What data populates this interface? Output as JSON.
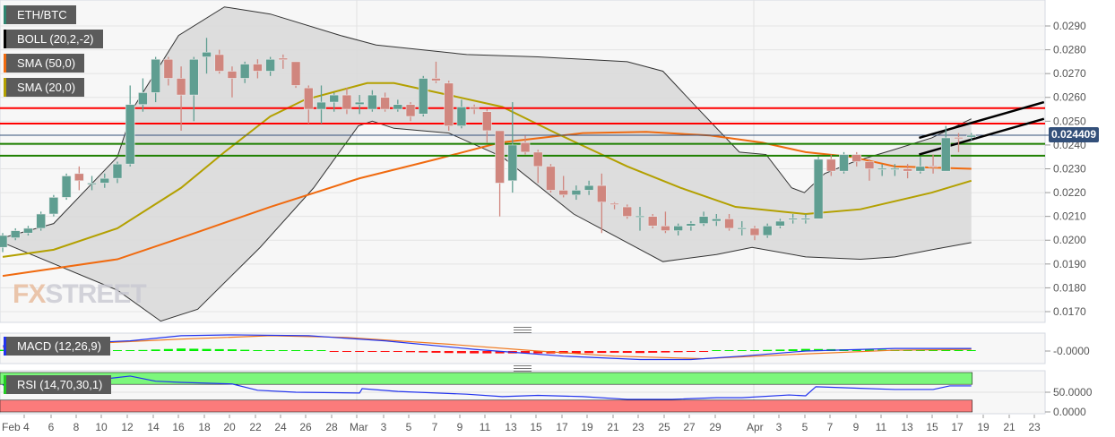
{
  "legend": {
    "pair": "ETH/BTC",
    "boll": "BOLL (20,2,-2)",
    "sma50": "SMA (50,0)",
    "sma20": "SMA (20,0)",
    "macd": "MACD (12,26,9)",
    "rsi": "RSI (14,70,30,1)"
  },
  "watermark": {
    "fx": "FX",
    "street": "STREET"
  },
  "current_price": "0.024409",
  "colors": {
    "bull": "#5f9e91",
    "bull_strong": "#2e8570",
    "bear": "#d0867e",
    "bear_strong": "#d65a4a",
    "sma50": "#f06a0f",
    "sma20": "#b3a000",
    "boll": "#333333",
    "resistance": "#ff0000",
    "support": "#1e8000",
    "price_line": "#33507a",
    "macd": "#2233ee",
    "signal": "#f07a20"
  },
  "chart_data": [
    {
      "type": "candlestick",
      "ylim": [
        0.0165,
        0.03
      ],
      "y_ticks": [
        "0.0290",
        "0.0280",
        "0.0270",
        "0.0260",
        "0.0250",
        "0.0240",
        "0.0230",
        "0.0220",
        "0.0210",
        "0.0200",
        "0.0190",
        "0.0180",
        "0.0170"
      ],
      "x_ticks": [
        "Feb 4",
        "6",
        "8",
        "10",
        "12",
        "14",
        "16",
        "18",
        "20",
        "22",
        "24",
        "26",
        "28",
        "Mar",
        "3",
        "5",
        "7",
        "9",
        "11",
        "13",
        "15",
        "17",
        "19",
        "21",
        "23",
        "25",
        "27",
        "29",
        "Apr",
        "3",
        "5",
        "7",
        "9",
        "11",
        "13",
        "15",
        "17",
        "19",
        "21",
        "23"
      ],
      "candles": [
        [
          0.0197,
          0.0203,
          0.0195,
          0.0202
        ],
        [
          0.0201,
          0.0205,
          0.02,
          0.0204
        ],
        [
          0.0203,
          0.0206,
          0.0202,
          0.0205
        ],
        [
          0.0205,
          0.0212,
          0.0204,
          0.0211
        ],
        [
          0.0211,
          0.0219,
          0.021,
          0.0218
        ],
        [
          0.0218,
          0.0228,
          0.0217,
          0.0227
        ],
        [
          0.0228,
          0.0231,
          0.0221,
          0.0225
        ],
        [
          0.0224,
          0.0227,
          0.0221,
          0.0224
        ],
        [
          0.0224,
          0.0228,
          0.0222,
          0.0226
        ],
        [
          0.0226,
          0.0233,
          0.0224,
          0.0232
        ],
        [
          0.0232,
          0.0265,
          0.0231,
          0.0257
        ],
        [
          0.0257,
          0.0268,
          0.0254,
          0.0262
        ],
        [
          0.0262,
          0.0277,
          0.0258,
          0.0276
        ],
        [
          0.0276,
          0.0277,
          0.0265,
          0.0268
        ],
        [
          0.0268,
          0.0273,
          0.0246,
          0.0261
        ],
        [
          0.0261,
          0.0277,
          0.025,
          0.0276
        ],
        [
          0.0277,
          0.0285,
          0.027,
          0.0279
        ],
        [
          0.0278,
          0.028,
          0.027,
          0.0271
        ],
        [
          0.0271,
          0.0273,
          0.026,
          0.0268
        ],
        [
          0.0268,
          0.0275,
          0.0266,
          0.0274
        ],
        [
          0.0274,
          0.0276,
          0.0268,
          0.0271
        ],
        [
          0.0271,
          0.0277,
          0.0269,
          0.0276
        ],
        [
          0.02765,
          0.0278,
          0.0272,
          0.02758
        ],
        [
          0.0275,
          0.0275,
          0.0264,
          0.0265
        ],
        [
          0.0264,
          0.0265,
          0.0249,
          0.0255
        ],
        [
          0.0255,
          0.0265,
          0.0249,
          0.0258
        ],
        [
          0.0258,
          0.0262,
          0.0254,
          0.0261
        ],
        [
          0.0261,
          0.0264,
          0.0253,
          0.0255
        ],
        [
          0.0257,
          0.0261,
          0.0253,
          0.0258
        ],
        [
          0.0255,
          0.0263,
          0.0254,
          0.0261
        ],
        [
          0.026,
          0.0262,
          0.0254,
          0.0255
        ],
        [
          0.0255,
          0.0259,
          0.0254,
          0.0257
        ],
        [
          0.0257,
          0.0258,
          0.025,
          0.0252
        ],
        [
          0.0253,
          0.0269,
          0.0252,
          0.0268
        ],
        [
          0.0268,
          0.0275,
          0.0266,
          0.0267
        ],
        [
          0.0266,
          0.0267,
          0.0246,
          0.0248
        ],
        [
          0.0248,
          0.0259,
          0.0247,
          0.0256
        ],
        [
          0.0256,
          0.0257,
          0.0253,
          0.0255
        ],
        [
          0.0254,
          0.0255,
          0.0241,
          0.0246
        ],
        [
          0.0246,
          0.0246,
          0.021,
          0.0224
        ],
        [
          0.0225,
          0.0258,
          0.022,
          0.024
        ],
        [
          0.0241,
          0.0244,
          0.0236,
          0.0237
        ],
        [
          0.0237,
          0.0238,
          0.0224,
          0.0231
        ],
        [
          0.0231,
          0.0232,
          0.022,
          0.0221
        ],
        [
          0.0221,
          0.0227,
          0.0218,
          0.0219
        ],
        [
          0.0219,
          0.0223,
          0.0217,
          0.0221
        ],
        [
          0.0221,
          0.0225,
          0.0219,
          0.0223
        ],
        [
          0.0223,
          0.0228,
          0.0203,
          0.0216
        ],
        [
          0.02155,
          0.0216,
          0.0213,
          0.0215
        ],
        [
          0.0214,
          0.0215,
          0.0209,
          0.021
        ],
        [
          0.02098,
          0.0214,
          0.0204,
          0.02102
        ],
        [
          0.021,
          0.0211,
          0.0205,
          0.0206
        ],
        [
          0.0206,
          0.0212,
          0.0203,
          0.0204
        ],
        [
          0.0204,
          0.0207,
          0.0202,
          0.0206
        ],
        [
          0.0206,
          0.0208,
          0.0204,
          0.0207
        ],
        [
          0.0207,
          0.0212,
          0.0206,
          0.021
        ],
        [
          0.0208,
          0.0211,
          0.0206,
          0.0209
        ],
        [
          0.0209,
          0.0211,
          0.0204,
          0.0205
        ],
        [
          0.02048,
          0.0208,
          0.0202,
          0.02052
        ],
        [
          0.0205,
          0.0206,
          0.02,
          0.0202
        ],
        [
          0.0202,
          0.0207,
          0.0201,
          0.0206
        ],
        [
          0.0206,
          0.0209,
          0.0205,
          0.0208
        ],
        [
          0.02088,
          0.0211,
          0.0207,
          0.02092
        ],
        [
          0.02088,
          0.0211,
          0.0207,
          0.02092
        ],
        [
          0.0209,
          0.0235,
          0.0209,
          0.0234
        ],
        [
          0.0234,
          0.0236,
          0.0227,
          0.0229
        ],
        [
          0.0229,
          0.0237,
          0.0228,
          0.0236
        ],
        [
          0.0236,
          0.0237,
          0.0231,
          0.0233
        ],
        [
          0.0233,
          0.0234,
          0.0225,
          0.023
        ],
        [
          0.02298,
          0.0232,
          0.0227,
          0.02302
        ],
        [
          0.02298,
          0.0232,
          0.0227,
          0.02302
        ],
        [
          0.023,
          0.0232,
          0.0226,
          0.0229
        ],
        [
          0.0229,
          0.0235,
          0.0228,
          0.0231
        ],
        [
          0.02312,
          0.0236,
          0.0228,
          0.02308
        ],
        [
          0.0229,
          0.0248,
          0.0229,
          0.0243
        ],
        [
          0.02432,
          0.0245,
          0.0237,
          0.02428
        ],
        [
          0.02433,
          0.0245,
          0.0242,
          0.02441
        ]
      ],
      "bollinger_upper": [
        [
          0,
          0.0201
        ],
        [
          4,
          0.0207
        ],
        [
          9,
          0.0235
        ],
        [
          10.3,
          0.0256
        ],
        [
          13.8,
          0.0286
        ],
        [
          17.4,
          0.0298
        ],
        [
          21,
          0.0295
        ],
        [
          26.5,
          0.0286
        ],
        [
          29.3,
          0.0282
        ],
        [
          36.4,
          0.0278
        ],
        [
          42,
          0.0277
        ],
        [
          49,
          0.0275
        ],
        [
          51.8,
          0.0271
        ],
        [
          53.2,
          0.0263
        ],
        [
          54.6,
          0.0255
        ],
        [
          57.8,
          0.0237
        ],
        [
          59.9,
          0.0236
        ],
        [
          61.9,
          0.0222
        ],
        [
          62.9,
          0.022
        ],
        [
          64.5,
          0.0228
        ],
        [
          66.8,
          0.0233
        ],
        [
          69.9,
          0.0238
        ],
        [
          72.9,
          0.0243
        ],
        [
          76,
          0.0251
        ]
      ],
      "bollinger_lower": [
        [
          0,
          0.0199
        ],
        [
          9,
          0.0179
        ],
        [
          12.4,
          0.0166
        ],
        [
          15.3,
          0.0171
        ],
        [
          20.2,
          0.0197
        ],
        [
          24.4,
          0.0222
        ],
        [
          27.9,
          0.0248
        ],
        [
          29,
          0.025
        ],
        [
          30.7,
          0.0247
        ],
        [
          35,
          0.0245
        ],
        [
          39.2,
          0.0235
        ],
        [
          44.8,
          0.0211
        ],
        [
          49,
          0.0199
        ],
        [
          51.8,
          0.0191
        ],
        [
          56,
          0.0194
        ],
        [
          58.8,
          0.0197
        ],
        [
          63,
          0.0193
        ],
        [
          67.3,
          0.0192
        ],
        [
          70,
          0.0193
        ],
        [
          72.9,
          0.0196
        ],
        [
          76,
          0.0199
        ]
      ],
      "sma50": [
        [
          0,
          0.0185
        ],
        [
          9,
          0.0192
        ],
        [
          14,
          0.0201
        ],
        [
          21,
          0.0214
        ],
        [
          28,
          0.0226
        ],
        [
          34,
          0.0234
        ],
        [
          39,
          0.0241
        ],
        [
          45.5,
          0.0245
        ],
        [
          50.5,
          0.02455
        ],
        [
          55.5,
          0.0244
        ],
        [
          59.6,
          0.0241
        ],
        [
          63,
          0.0237
        ],
        [
          66.6,
          0.0235
        ],
        [
          70,
          0.0231
        ],
        [
          76,
          0.023
        ]
      ],
      "sma20": [
        [
          0,
          0.0193
        ],
        [
          4,
          0.0196
        ],
        [
          9,
          0.0205
        ],
        [
          14,
          0.0222
        ],
        [
          17.4,
          0.0237
        ],
        [
          21,
          0.0252
        ],
        [
          23.7,
          0.0259
        ],
        [
          28.6,
          0.0266
        ],
        [
          30.7,
          0.0266
        ],
        [
          35,
          0.0261
        ],
        [
          39.2,
          0.0256
        ],
        [
          43.4,
          0.0245
        ],
        [
          49,
          0.0231
        ],
        [
          53.2,
          0.0222
        ],
        [
          57.5,
          0.0214
        ],
        [
          63,
          0.0211
        ],
        [
          67.3,
          0.0213
        ],
        [
          72.9,
          0.022
        ],
        [
          76,
          0.0225
        ]
      ],
      "resistance_levels": [
        0.02555,
        0.0249
      ],
      "support_levels": [
        0.02405,
        0.02355
      ],
      "trend_lines": [
        [
          [
            71.9,
            0.0243
          ],
          [
            81.7,
            0.0258
          ]
        ],
        [
          [
            71.9,
            0.0236
          ],
          [
            81.7,
            0.0251
          ]
        ]
      ]
    },
    {
      "type": "line",
      "y_ticks": [
        "-0.0000"
      ],
      "macd": [
        [
          0,
          0.3
        ],
        [
          10,
          0.6
        ],
        [
          14,
          0.9
        ],
        [
          18,
          0.95
        ],
        [
          24,
          0.9
        ],
        [
          30,
          0.6
        ],
        [
          37,
          0.1
        ],
        [
          44,
          -0.3
        ],
        [
          50,
          -0.5
        ],
        [
          54,
          -0.5
        ],
        [
          58,
          -0.3
        ],
        [
          63,
          0
        ],
        [
          70,
          0.15
        ],
        [
          76,
          0.15
        ]
      ],
      "signal": [
        [
          0,
          0.2
        ],
        [
          14,
          0.7
        ],
        [
          21,
          0.9
        ],
        [
          27,
          0.8
        ],
        [
          35,
          0.4
        ],
        [
          42,
          0.0
        ],
        [
          48,
          -0.3
        ],
        [
          55,
          -0.45
        ],
        [
          62,
          -0.2
        ],
        [
          70,
          0.05
        ],
        [
          76,
          0.1
        ]
      ]
    },
    {
      "type": "line",
      "y_ticks": [
        "50.0000",
        "0.0000"
      ],
      "overbought": 70,
      "oversold": 30,
      "rsi": [
        [
          0,
          68
        ],
        [
          7,
          80
        ],
        [
          10,
          91
        ],
        [
          12,
          78
        ],
        [
          14,
          75
        ],
        [
          18,
          71
        ],
        [
          20,
          55
        ],
        [
          23,
          50
        ],
        [
          28,
          48
        ],
        [
          28.2,
          59
        ],
        [
          31,
          52
        ],
        [
          36.4,
          45
        ],
        [
          39.2,
          39
        ],
        [
          42,
          42
        ],
        [
          45.5,
          39
        ],
        [
          49,
          32
        ],
        [
          52.5,
          32
        ],
        [
          56,
          36
        ],
        [
          58,
          36
        ],
        [
          61.7,
          43
        ],
        [
          63,
          41
        ],
        [
          63.8,
          64
        ],
        [
          67.3,
          60
        ],
        [
          70,
          57
        ],
        [
          73,
          57
        ],
        [
          74.3,
          66
        ],
        [
          76,
          66
        ]
      ]
    }
  ]
}
